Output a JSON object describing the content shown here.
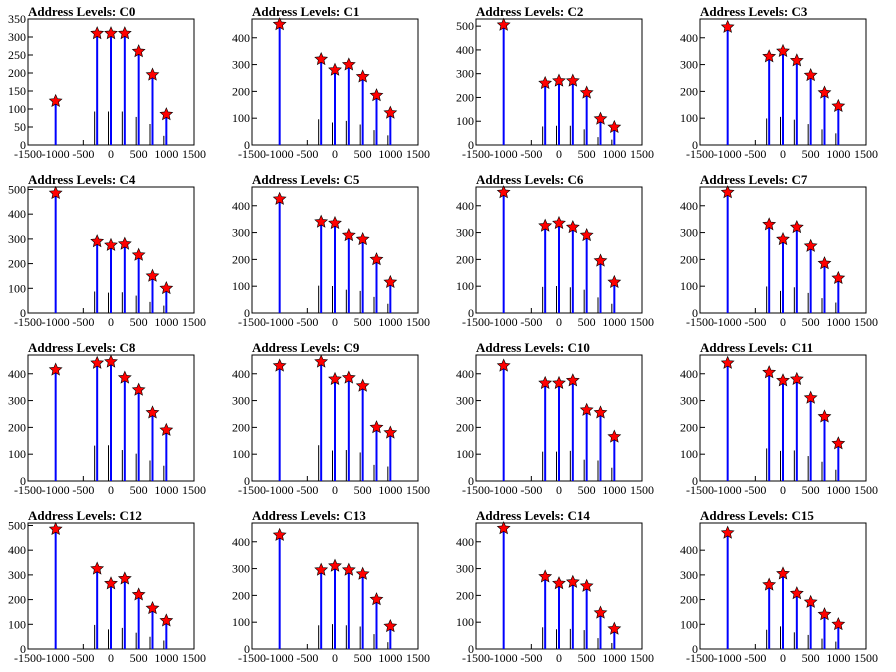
{
  "charts": [
    {
      "title": "Address Levels: C0",
      "ylim": [
        0,
        350
      ],
      "yticks": [
        0,
        50,
        100,
        150,
        200,
        250,
        300,
        350
      ],
      "peaks": [
        {
          "x": -1000,
          "y": 122
        },
        {
          "x": -250,
          "y": 310
        },
        {
          "x": 0,
          "y": 310
        },
        {
          "x": 250,
          "y": 310
        },
        {
          "x": 500,
          "y": 260
        },
        {
          "x": 750,
          "y": 195
        },
        {
          "x": 1000,
          "y": 85
        }
      ]
    },
    {
      "title": "Address Levels: C1",
      "ylim": [
        0,
        470
      ],
      "yticks": [
        0,
        100,
        200,
        300,
        400
      ],
      "peaks": [
        {
          "x": -1000,
          "y": 450
        },
        {
          "x": -250,
          "y": 320
        },
        {
          "x": 0,
          "y": 280
        },
        {
          "x": 250,
          "y": 300
        },
        {
          "x": 500,
          "y": 255
        },
        {
          "x": 750,
          "y": 185
        },
        {
          "x": 1000,
          "y": 120
        }
      ]
    },
    {
      "title": "Address Levels: C2",
      "ylim": [
        0,
        530
      ],
      "yticks": [
        0,
        100,
        200,
        300,
        400,
        500
      ],
      "peaks": [
        {
          "x": -1000,
          "y": 505
        },
        {
          "x": -250,
          "y": 260
        },
        {
          "x": 0,
          "y": 270
        },
        {
          "x": 250,
          "y": 270
        },
        {
          "x": 500,
          "y": 220
        },
        {
          "x": 750,
          "y": 110
        },
        {
          "x": 1000,
          "y": 75
        }
      ]
    },
    {
      "title": "Address Levels: C3",
      "ylim": [
        0,
        470
      ],
      "yticks": [
        0,
        100,
        200,
        300,
        400
      ],
      "peaks": [
        {
          "x": -1000,
          "y": 440
        },
        {
          "x": -250,
          "y": 330
        },
        {
          "x": 0,
          "y": 350
        },
        {
          "x": 250,
          "y": 315
        },
        {
          "x": 500,
          "y": 260
        },
        {
          "x": 750,
          "y": 195
        },
        {
          "x": 1000,
          "y": 145
        }
      ]
    },
    {
      "title": "Address Levels: C4",
      "ylim": [
        0,
        510
      ],
      "yticks": [
        0,
        100,
        200,
        300,
        400,
        500
      ],
      "peaks": [
        {
          "x": -1000,
          "y": 485
        },
        {
          "x": -250,
          "y": 290
        },
        {
          "x": 0,
          "y": 275
        },
        {
          "x": 250,
          "y": 280
        },
        {
          "x": 500,
          "y": 235
        },
        {
          "x": 750,
          "y": 150
        },
        {
          "x": 1000,
          "y": 100
        }
      ]
    },
    {
      "title": "Address Levels: C5",
      "ylim": [
        0,
        470
      ],
      "yticks": [
        0,
        100,
        200,
        300,
        400
      ],
      "peaks": [
        {
          "x": -1000,
          "y": 425
        },
        {
          "x": -250,
          "y": 340
        },
        {
          "x": 0,
          "y": 335
        },
        {
          "x": 250,
          "y": 290
        },
        {
          "x": 500,
          "y": 275
        },
        {
          "x": 750,
          "y": 200
        },
        {
          "x": 1000,
          "y": 115
        }
      ]
    },
    {
      "title": "Address Levels: C6",
      "ylim": [
        0,
        470
      ],
      "yticks": [
        0,
        100,
        200,
        300,
        400
      ],
      "peaks": [
        {
          "x": -1000,
          "y": 450
        },
        {
          "x": -250,
          "y": 325
        },
        {
          "x": 0,
          "y": 335
        },
        {
          "x": 250,
          "y": 320
        },
        {
          "x": 500,
          "y": 290
        },
        {
          "x": 750,
          "y": 195
        },
        {
          "x": 1000,
          "y": 115
        }
      ]
    },
    {
      "title": "Address Levels: C7",
      "ylim": [
        0,
        470
      ],
      "yticks": [
        0,
        100,
        200,
        300,
        400
      ],
      "peaks": [
        {
          "x": -1000,
          "y": 450
        },
        {
          "x": -250,
          "y": 330
        },
        {
          "x": 0,
          "y": 275
        },
        {
          "x": 250,
          "y": 320
        },
        {
          "x": 500,
          "y": 250
        },
        {
          "x": 750,
          "y": 185
        },
        {
          "x": 1000,
          "y": 130
        }
      ]
    },
    {
      "title": "Address Levels: C8",
      "ylim": [
        0,
        470
      ],
      "yticks": [
        0,
        100,
        200,
        300,
        400
      ],
      "peaks": [
        {
          "x": -1000,
          "y": 415
        },
        {
          "x": -250,
          "y": 440
        },
        {
          "x": 0,
          "y": 445
        },
        {
          "x": 250,
          "y": 385
        },
        {
          "x": 500,
          "y": 340
        },
        {
          "x": 750,
          "y": 255
        },
        {
          "x": 1000,
          "y": 190
        }
      ]
    },
    {
      "title": "Address Levels: C9",
      "ylim": [
        0,
        470
      ],
      "yticks": [
        0,
        100,
        200,
        300,
        400
      ],
      "peaks": [
        {
          "x": -1000,
          "y": 430
        },
        {
          "x": -250,
          "y": 445
        },
        {
          "x": 0,
          "y": 380
        },
        {
          "x": 250,
          "y": 385
        },
        {
          "x": 500,
          "y": 355
        },
        {
          "x": 750,
          "y": 200
        },
        {
          "x": 1000,
          "y": 180
        }
      ]
    },
    {
      "title": "Address Levels: C10",
      "ylim": [
        0,
        470
      ],
      "yticks": [
        0,
        100,
        200,
        300,
        400
      ],
      "peaks": [
        {
          "x": -1000,
          "y": 430
        },
        {
          "x": -250,
          "y": 365
        },
        {
          "x": 0,
          "y": 365
        },
        {
          "x": 250,
          "y": 375
        },
        {
          "x": 500,
          "y": 265
        },
        {
          "x": 750,
          "y": 255
        },
        {
          "x": 1000,
          "y": 165
        }
      ]
    },
    {
      "title": "Address Levels: C11",
      "ylim": [
        0,
        470
      ],
      "yticks": [
        0,
        100,
        200,
        300,
        400
      ],
      "peaks": [
        {
          "x": -1000,
          "y": 440
        },
        {
          "x": -250,
          "y": 405
        },
        {
          "x": 0,
          "y": 375
        },
        {
          "x": 250,
          "y": 380
        },
        {
          "x": 500,
          "y": 310
        },
        {
          "x": 750,
          "y": 240
        },
        {
          "x": 1000,
          "y": 140
        }
      ]
    },
    {
      "title": "Address Levels: C12",
      "ylim": [
        0,
        510
      ],
      "yticks": [
        0,
        100,
        200,
        300,
        400,
        500
      ],
      "peaks": [
        {
          "x": -1000,
          "y": 485
        },
        {
          "x": -250,
          "y": 325
        },
        {
          "x": 0,
          "y": 265
        },
        {
          "x": 250,
          "y": 285
        },
        {
          "x": 500,
          "y": 220
        },
        {
          "x": 750,
          "y": 165
        },
        {
          "x": 1000,
          "y": 115
        }
      ]
    },
    {
      "title": "Address Levels: C13",
      "ylim": [
        0,
        470
      ],
      "yticks": [
        0,
        100,
        200,
        300,
        400
      ],
      "peaks": [
        {
          "x": -1000,
          "y": 425
        },
        {
          "x": -250,
          "y": 295
        },
        {
          "x": 0,
          "y": 310
        },
        {
          "x": 250,
          "y": 295
        },
        {
          "x": 500,
          "y": 280
        },
        {
          "x": 750,
          "y": 185
        },
        {
          "x": 1000,
          "y": 85
        }
      ]
    },
    {
      "title": "Address Levels: C14",
      "ylim": [
        0,
        470
      ],
      "yticks": [
        0,
        100,
        200,
        300,
        400
      ],
      "peaks": [
        {
          "x": -1000,
          "y": 450
        },
        {
          "x": -250,
          "y": 270
        },
        {
          "x": 0,
          "y": 245
        },
        {
          "x": 250,
          "y": 250
        },
        {
          "x": 500,
          "y": 235
        },
        {
          "x": 750,
          "y": 135
        },
        {
          "x": 1000,
          "y": 75
        }
      ]
    },
    {
      "title": "Address Levels: C15",
      "ylim": [
        0,
        510
      ],
      "yticks": [
        0,
        100,
        200,
        300,
        400
      ],
      "peaks": [
        {
          "x": -1000,
          "y": 470
        },
        {
          "x": -250,
          "y": 260
        },
        {
          "x": 0,
          "y": 305
        },
        {
          "x": 250,
          "y": 225
        },
        {
          "x": 500,
          "y": 190
        },
        {
          "x": 750,
          "y": 140
        },
        {
          "x": 1000,
          "y": 100
        }
      ]
    }
  ],
  "chart_data": {
    "type": "bar",
    "xlim": [
      -1500,
      1500
    ],
    "xticks": [
      -1500,
      -1000,
      -500,
      0,
      500,
      1000,
      1500
    ],
    "colors": {
      "bars": "#0000ff",
      "markers": "#ff0000",
      "marker_edge": "#000000"
    }
  }
}
